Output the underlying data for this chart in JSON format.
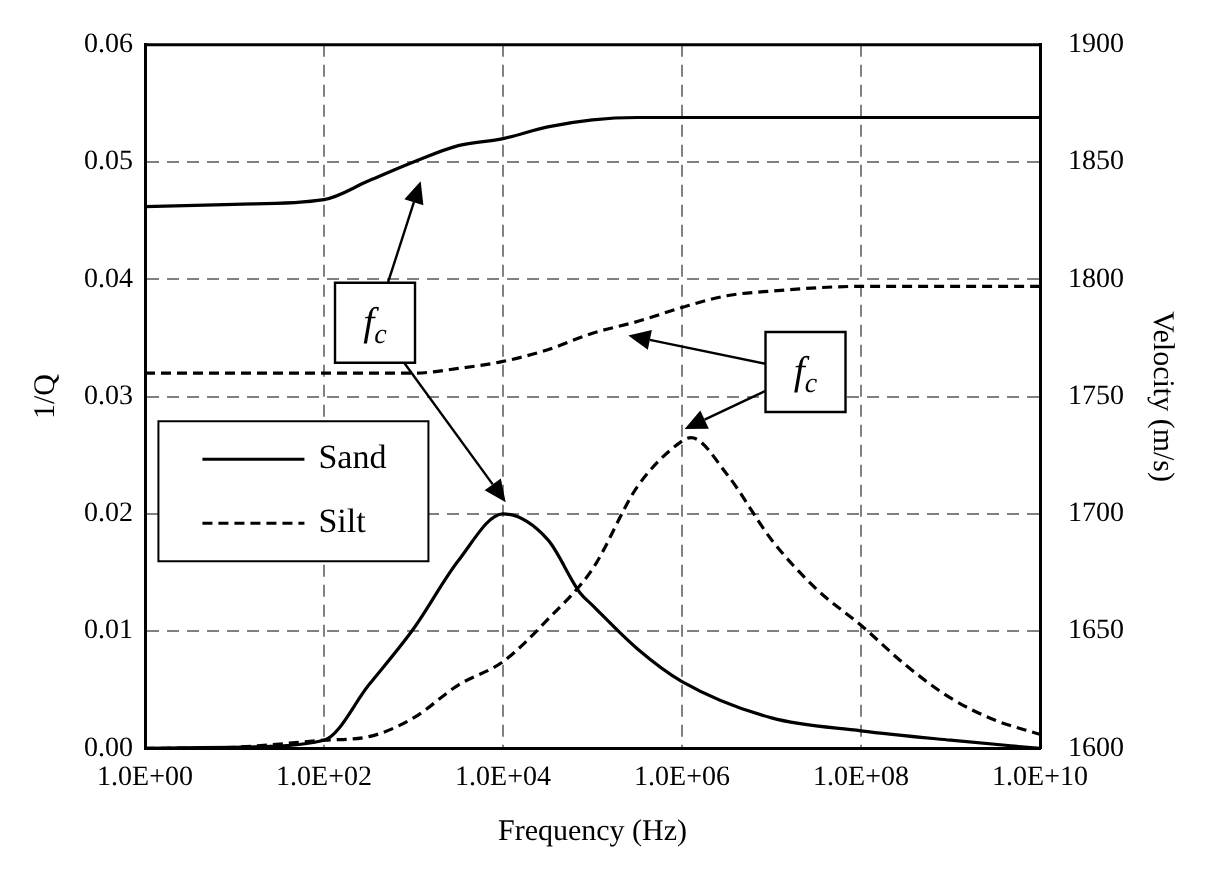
{
  "chart_data": {
    "type": "line",
    "xlabel": "Frequency (Hz)",
    "ylabel": "1/Q",
    "y2label": "Velocity (m/s)",
    "log": "x",
    "grid": true,
    "legend": "left",
    "marker": "none",
    "xlim": [
      1,
      10000000000
    ],
    "xticks": [
      {
        "value": 1,
        "label": "1.0E+00"
      },
      {
        "value": 100,
        "label": "1.0E+02"
      },
      {
        "value": 10000,
        "label": "1.0E+04"
      },
      {
        "value": 1000000,
        "label": "1.0E+06"
      },
      {
        "value": 100000000,
        "label": "1.0E+08"
      },
      {
        "value": 10000000000,
        "label": "1.0E+10"
      }
    ],
    "ylim": [
      0,
      0.06
    ],
    "yticks": [
      {
        "value": 0,
        "label": "0.00"
      },
      {
        "value": 0.01,
        "label": "0.01"
      },
      {
        "value": 0.02,
        "label": "0.02"
      },
      {
        "value": 0.03,
        "label": "0.03"
      },
      {
        "value": 0.04,
        "label": "0.04"
      },
      {
        "value": 0.05,
        "label": "0.05"
      },
      {
        "value": 0.06,
        "label": "0.06"
      }
    ],
    "y2lim": [
      1600,
      1900
    ],
    "y2ticks": [
      1600,
      1650,
      1700,
      1750,
      1800,
      1850,
      1900
    ],
    "annotations": [
      "f$_{c}$",
      "f$_{c}$"
    ],
    "series": [
      {
        "name": "Sand",
        "color": "#000000",
        "line_style": "solid",
        "x": [
          1,
          10,
          100,
          316,
          1000,
          3162,
          10000,
          31623,
          72000,
          100000,
          316228,
          1000000,
          10000000,
          100000000,
          1000000000,
          10000000000
        ],
        "values": [
          0,
          0.0001,
          0.0007,
          0.0054,
          0.0102,
          0.016,
          0.02,
          0.0178,
          0.0133,
          0.0122,
          0.0085,
          0.0057,
          0.0026,
          0.0015,
          0.0007,
          0
        ]
      },
      {
        "name": "Silt",
        "color": "#000000",
        "line_style": "dashed",
        "x": [
          1,
          10,
          100,
          316,
          1000,
          3162,
          10000,
          31623,
          100000,
          316228,
          1000000,
          1260000,
          3162278,
          10000000,
          31622777,
          100000000,
          316227766,
          1000000000,
          3162277660,
          10000000000
        ],
        "values": [
          0,
          0.0001,
          0.0007,
          0.001,
          0.0026,
          0.0054,
          0.0074,
          0.011,
          0.0153,
          0.0223,
          0.0262,
          0.0265,
          0.0234,
          0.0178,
          0.0136,
          0.0105,
          0.0071,
          0.0043,
          0.0024,
          0.0012
        ]
      },
      {
        "color": "#000000",
        "line_style": "solid",
        "axis": "y2",
        "x": [
          1,
          10,
          100,
          316,
          1000,
          3162,
          10000,
          31623,
          100000,
          316228,
          1000000,
          10000000000
        ],
        "values": [
          1831,
          1832,
          1834,
          1842,
          1850,
          1857,
          1860,
          1865,
          1868,
          1869,
          1869,
          1869
        ]
      },
      {
        "color": "#000000",
        "line_style": "dashed",
        "axis": "y2",
        "x": [
          1,
          1000,
          3162,
          10000,
          31623,
          100000,
          316228,
          1000000,
          3162278,
          10000000,
          100000000,
          10000000000
        ],
        "values": [
          1760,
          1760,
          1762,
          1765,
          1770,
          1777,
          1782,
          1788,
          1793,
          1795,
          1797,
          1797
        ]
      }
    ]
  }
}
